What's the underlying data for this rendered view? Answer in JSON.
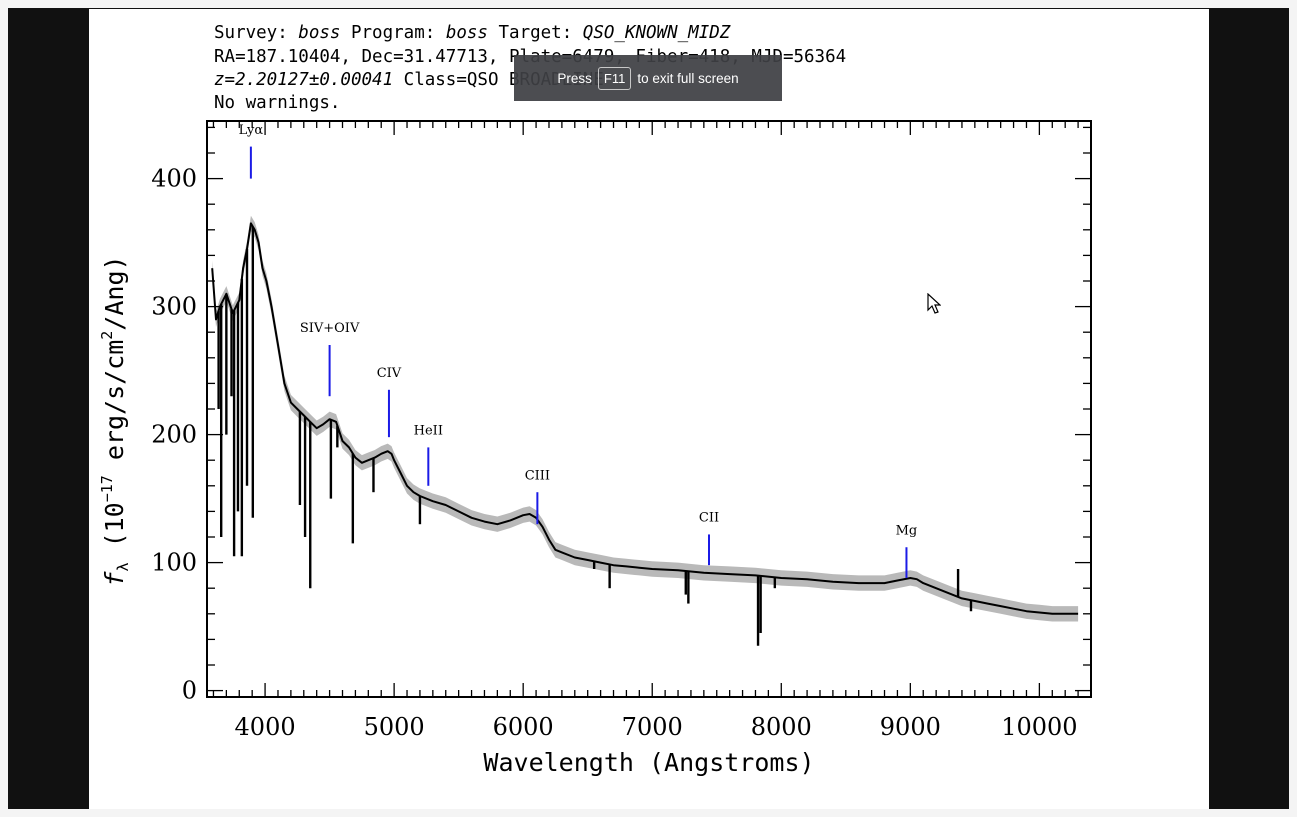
{
  "header": {
    "line1": {
      "survey_label": "Survey: ",
      "survey_value": "boss",
      "program_label": " Program: ",
      "program_value": "boss",
      "target_label": " Target: ",
      "target_value": "QSO_KNOWN_MIDZ"
    },
    "line2": "RA=187.10404, Dec=31.47713, Plate=6479, Fiber=418, MJD=56364",
    "line3": {
      "z_value": "z=2.20127±0.00041",
      "class_text": " Class=QSO BROADLINE"
    },
    "line4": "No warnings."
  },
  "toast": {
    "press": "Press",
    "key": "F11",
    "rest": "to exit full screen"
  },
  "cursor": "mouse-pointer-icon",
  "chart_data": {
    "type": "line",
    "xlabel": "Wavelength (Angstroms)",
    "ylabel": "f_λ (10^-17 erg/s/cm²/Ang)",
    "xlim": [
      3550,
      10400
    ],
    "ylim": [
      -5,
      445
    ],
    "x_ticks": [
      4000,
      5000,
      6000,
      7000,
      8000,
      9000,
      10000
    ],
    "y_ticks": [
      0,
      100,
      200,
      300,
      400
    ],
    "grid": false,
    "series": [
      {
        "x": [
          3590,
          3620,
          3650,
          3700,
          3750,
          3800,
          3830,
          3860,
          3890,
          3920,
          3950,
          3980,
          4010,
          4050,
          4100,
          4150,
          4200,
          4250,
          4300,
          4350,
          4400,
          4450,
          4500,
          4550,
          4600,
          4650,
          4700,
          4750,
          4800,
          4850,
          4900,
          4950,
          4980,
          5000,
          5050,
          5100,
          5150,
          5200,
          5300,
          5400,
          5500,
          5600,
          5700,
          5800,
          5900,
          6000,
          6050,
          6100,
          6150,
          6200,
          6250,
          6300,
          6400,
          6500,
          6600,
          6700,
          6800,
          6900,
          7000,
          7200,
          7400,
          7600,
          7800,
          8000,
          8200,
          8400,
          8600,
          8800,
          8900,
          9000,
          9050,
          9100,
          9200,
          9300,
          9400,
          9500,
          9600,
          9700,
          9800,
          9900,
          10000,
          10100,
          10200,
          10300
        ],
        "y": [
          330,
          290,
          300,
          310,
          295,
          305,
          330,
          345,
          365,
          360,
          350,
          330,
          320,
          300,
          270,
          240,
          225,
          220,
          215,
          210,
          205,
          208,
          212,
          210,
          195,
          190,
          182,
          178,
          180,
          182,
          185,
          187,
          185,
          180,
          170,
          160,
          155,
          152,
          148,
          145,
          140,
          135,
          132,
          130,
          133,
          137,
          138,
          135,
          128,
          118,
          110,
          108,
          104,
          102,
          100,
          98,
          97,
          96,
          95,
          94,
          92,
          91,
          90,
          88,
          87,
          85,
          84,
          84,
          86,
          88,
          87,
          84,
          80,
          76,
          72,
          70,
          68,
          66,
          64,
          62,
          61,
          60,
          60,
          60
        ]
      }
    ],
    "dips": [
      {
        "x": 3640,
        "y": 220
      },
      {
        "x": 3660,
        "y": 120
      },
      {
        "x": 3700,
        "y": 200
      },
      {
        "x": 3740,
        "y": 230
      },
      {
        "x": 3760,
        "y": 105
      },
      {
        "x": 3790,
        "y": 140
      },
      {
        "x": 3820,
        "y": 105
      },
      {
        "x": 3860,
        "y": 160
      },
      {
        "x": 3905,
        "y": 135
      },
      {
        "x": 4270,
        "y": 145
      },
      {
        "x": 4310,
        "y": 120
      },
      {
        "x": 4350,
        "y": 80
      },
      {
        "x": 4510,
        "y": 150
      },
      {
        "x": 4560,
        "y": 190
      },
      {
        "x": 4680,
        "y": 115
      },
      {
        "x": 4840,
        "y": 155
      },
      {
        "x": 5200,
        "y": 130
      },
      {
        "x": 6550,
        "y": 95
      },
      {
        "x": 6670,
        "y": 80
      },
      {
        "x": 7260,
        "y": 75
      },
      {
        "x": 7280,
        "y": 68
      },
      {
        "x": 7820,
        "y": 35
      },
      {
        "x": 7840,
        "y": 45
      },
      {
        "x": 7950,
        "y": 80
      },
      {
        "x": 9470,
        "y": 62
      }
    ],
    "spikes": [
      {
        "x": 9370,
        "y": 95
      }
    ],
    "lines": [
      {
        "label": "Lyα",
        "x": 3890,
        "y0": 400,
        "y1": 425,
        "label_y": 435
      },
      {
        "label": "SIV+OIV",
        "x": 4500,
        "y0": 230,
        "y1": 270,
        "label_y": 280
      },
      {
        "label": "CIV",
        "x": 4960,
        "y0": 198,
        "y1": 235,
        "label_y": 245
      },
      {
        "label": "HeII",
        "x": 5265,
        "y0": 160,
        "y1": 190,
        "label_y": 200
      },
      {
        "label": "CIII",
        "x": 6110,
        "y0": 130,
        "y1": 155,
        "label_y": 165
      },
      {
        "label": "CII",
        "x": 7440,
        "y0": 98,
        "y1": 122,
        "label_y": 132
      },
      {
        "label": "Mg",
        "x": 8970,
        "y0": 88,
        "y1": 112,
        "label_y": 122
      }
    ],
    "colors": {
      "spectrum": "#000000",
      "error_band": "#b9b9b9",
      "line_marker": "#1b1be6"
    }
  }
}
